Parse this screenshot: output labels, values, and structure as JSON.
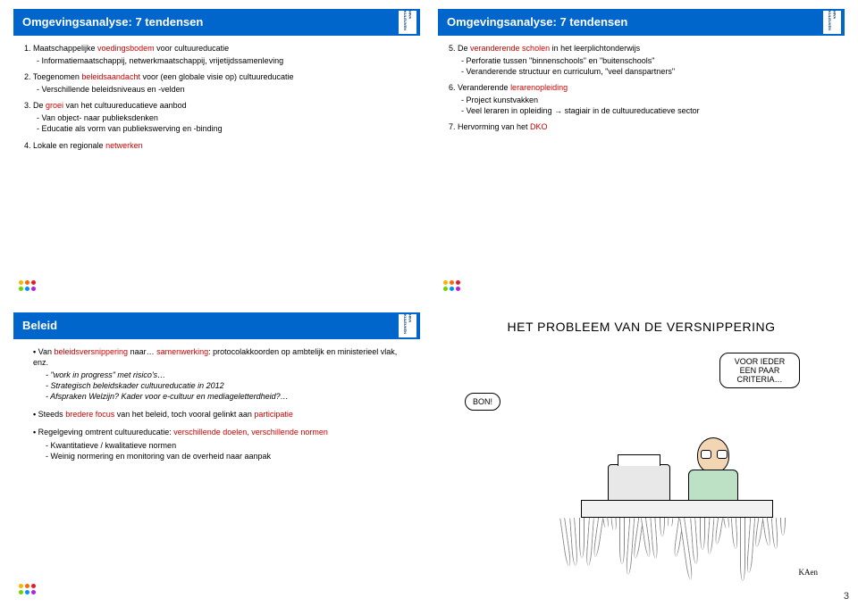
{
  "page_number": "3",
  "dot_colors": [
    "#f7b500",
    "#ff6a00",
    "#e02020",
    "#6dd400",
    "#0091ff",
    "#b620e0"
  ],
  "slide1": {
    "title": "Omgevingsanalyse: 7 tendensen",
    "items": [
      {
        "num": "1.",
        "pre": "Maatschappelijke ",
        "hl": "voedingsbodem",
        "post": " voor cultuureducatie",
        "subs": [
          "Informatiemaatschappij, netwerkmaatschappij, vrijetijdssamenleving"
        ]
      },
      {
        "num": "2.",
        "pre": "Toegenomen ",
        "hl": "beleidsaandacht",
        "post": " voor (een globale visie op) cultuureducatie",
        "subs": [
          "Verschillende beleidsniveaus en -velden"
        ]
      },
      {
        "num": "3.",
        "pre": "De ",
        "hl": "groei",
        "post": " van het cultuureducatieve aanbod",
        "subs": [
          "Van object- naar publieksdenken",
          "Educatie als vorm van publiekswerving en -binding"
        ]
      },
      {
        "num": "4.",
        "pre": "Lokale en regionale ",
        "hl": "netwerken",
        "post": "",
        "subs": []
      }
    ]
  },
  "slide2": {
    "title": "Omgevingsanalyse: 7 tendensen",
    "items": [
      {
        "num": "5.",
        "pre": "De ",
        "hl": "veranderende scholen",
        "post": " in het leerplichtonderwijs",
        "subs": [
          "Perforatie tussen \"binnenschools\" en \"buitenschools\"",
          "Veranderende structuur en curriculum, \"veel danspartners\""
        ]
      },
      {
        "num": "6.",
        "pre": "Veranderende ",
        "hl": "lerarenopleiding",
        "post": "",
        "subs": [
          "Project kunstvakken",
          "Veel leraren in opleiding → stagiair in de cultuureducatieve sector"
        ]
      },
      {
        "num": "7.",
        "pre": "Hervorming van het ",
        "hl": "DKO",
        "post": "",
        "subs": []
      }
    ]
  },
  "slide3": {
    "title": "Beleid",
    "bullets": [
      {
        "pre": "Van ",
        "hl1": "beleidsversnippering",
        "mid": " naar… ",
        "hl2": "samenwerking",
        "post": ": protocolakkoorden op ambtelijk en ministerieel vlak, enz.",
        "subs": [
          "\"work in progress\" met risico's…",
          "Strategisch beleidskader cultuureducatie in 2012",
          "Afspraken Welzijn? Kader voor e-cultuur en mediageletterdheid?…"
        ],
        "subs_italic": true
      },
      {
        "pre": "Steeds ",
        "hl1": "bredere focus",
        "mid": " van het beleid, toch vooral gelinkt aan ",
        "hl2": "participatie",
        "post": "",
        "subs": []
      },
      {
        "pre": "Regelgeving omtrent cultuureducatie: ",
        "hl1": "verschillende doelen, verschillende normen",
        "mid": "",
        "hl2": "",
        "post": "",
        "subs": [
          "Kwantitatieve / kwalitatieve normen",
          "Weinig normering en monitoring van de overheid naar aanpak"
        ]
      }
    ]
  },
  "cartoon": {
    "heading": "HET PROBLEEM VAN DE VERSNIPPERING",
    "speech_left": "BON!",
    "speech_right": "VOOR IEDER EEN PAAR CRITERIA…",
    "signature": "KAen"
  }
}
